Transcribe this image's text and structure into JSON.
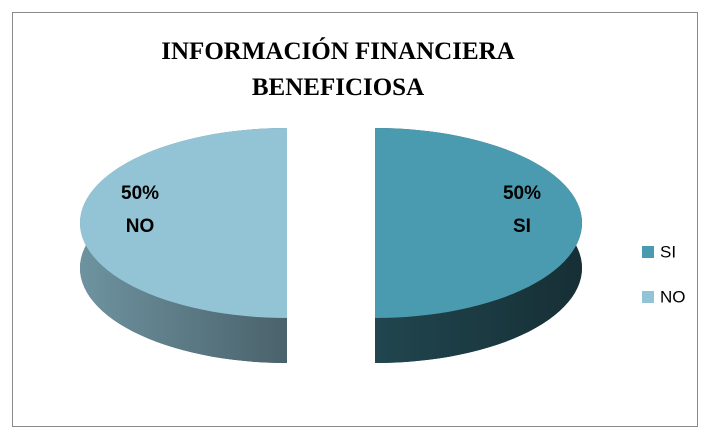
{
  "chart_data": {
    "type": "pie",
    "title": "INFORMACIÓN FINANCIERA BENEFICIOSA",
    "categories": [
      "SI",
      "NO"
    ],
    "values": [
      50,
      50
    ],
    "value_labels": [
      "50%",
      "50%"
    ],
    "colors": [
      "#4a9bb0",
      "#93c4d5"
    ],
    "legend": "right"
  }
}
